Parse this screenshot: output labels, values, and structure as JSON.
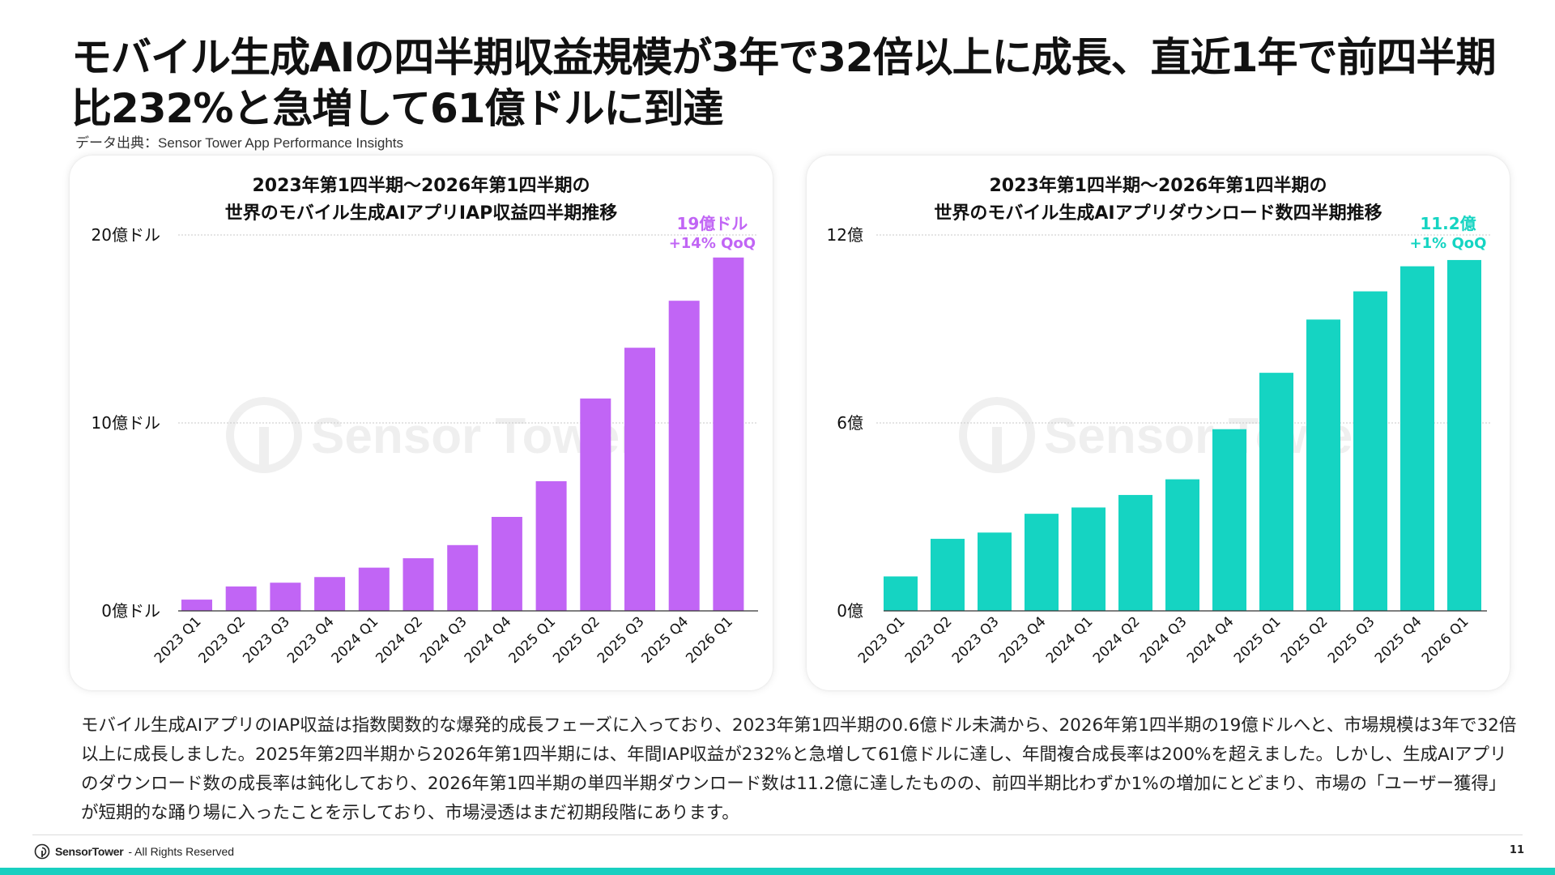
{
  "title": "モバイル生成AIの四半期収益規模が3年で32倍以上に成長、直近1年で前四半期比232%と急増して61億ドルに到達",
  "source": "データ出典：Sensor Tower App Performance Insights",
  "watermark_text": "Sensor Tower",
  "colors": {
    "revenue": "#c165f5",
    "downloads": "#15d4c2",
    "footer_bar": "#19cfc0"
  },
  "chart_data": [
    {
      "type": "bar",
      "title": [
        "2023年第1四半期～2026年第1四半期の",
        "世界のモバイル生成AIアプリIAP収益四半期推移"
      ],
      "categories": [
        "2023 Q1",
        "2023 Q2",
        "2023 Q3",
        "2023 Q4",
        "2024 Q1",
        "2024 Q2",
        "2024 Q3",
        "2024 Q4",
        "2025 Q1",
        "2025 Q2",
        "2025 Q3",
        "2025 Q4",
        "2026 Q1"
      ],
      "values": [
        0.6,
        1.3,
        1.5,
        1.8,
        2.3,
        2.8,
        3.5,
        5.0,
        6.9,
        11.3,
        14.0,
        16.5,
        18.8
      ],
      "unit": "億ドル",
      "ylim": [
        0,
        20
      ],
      "yticks": [
        0,
        10,
        20
      ],
      "ytick_labels": [
        "0億ドル",
        "10億ドル",
        "20億ドル"
      ],
      "grid": true,
      "annotation": [
        "19億ドル",
        "+14% QoQ"
      ]
    },
    {
      "type": "bar",
      "title": [
        "2023年第1四半期～2026年第1四半期の",
        "世界のモバイル生成AIアプリダウンロード数四半期推移"
      ],
      "categories": [
        "2023 Q1",
        "2023 Q2",
        "2023 Q3",
        "2023 Q4",
        "2024 Q1",
        "2024 Q2",
        "2024 Q3",
        "2024 Q4",
        "2025 Q1",
        "2025 Q2",
        "2025 Q3",
        "2025 Q4",
        "2026 Q1"
      ],
      "values": [
        1.1,
        2.3,
        2.5,
        3.1,
        3.3,
        3.7,
        4.2,
        5.8,
        7.6,
        9.3,
        10.2,
        11.0,
        11.2
      ],
      "unit": "億",
      "ylim": [
        0,
        12
      ],
      "yticks": [
        0,
        6,
        12
      ],
      "ytick_labels": [
        "0億",
        "6億",
        "12億"
      ],
      "grid": true,
      "annotation": [
        "11.2億",
        "+1% QoQ"
      ]
    }
  ],
  "body_text": "モバイル生成AIアプリのIAP収益は指数関数的な爆発的成長フェーズに入っており、2023年第1四半期の0.6億ドル未満から、2026年第1四半期の19億ドルへと、市場規模は3年で32倍以上に成長しました。2025年第2四半期から2026年第1四半期には、年間IAP収益が232%と急増して61億ドルに達し、年間複合成長率は200%を超えました。しかし、生成AIアプリのダウンロード数の成長率は鈍化しており、2026年第1四半期の単四半期ダウンロード数は11.2億に達したものの、前四半期比わずか1%の増加にとどまり、市場の「ユーザー獲得」が短期的な踊り場に入ったことを示しており、市場浸透はまだ初期段階にあります。",
  "footer": {
    "brand": "SensorTower",
    "rights": "- All Rights Reserved",
    "page": "11"
  }
}
